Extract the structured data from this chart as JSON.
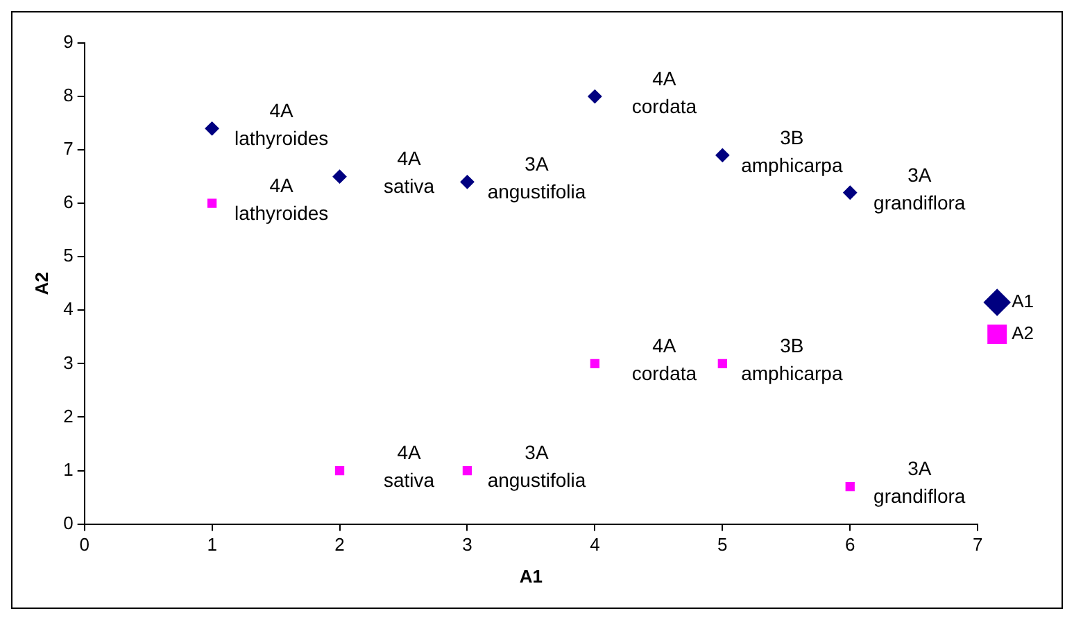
{
  "chart_data": {
    "type": "scatter",
    "xlabel": "A1",
    "ylabel": "A2",
    "xlim": [
      0,
      7
    ],
    "xticks": [
      0,
      1,
      2,
      3,
      4,
      5,
      6,
      7
    ],
    "ylim": [
      0,
      9
    ],
    "yticks": [
      0,
      1,
      2,
      3,
      4,
      5,
      6,
      7,
      8,
      9
    ],
    "grid": false,
    "legend": "right",
    "series": [
      {
        "name": "A1",
        "color": "#000080",
        "marker": "diamond",
        "x": [
          1,
          2,
          3,
          4,
          5,
          6
        ],
        "values": [
          7.4,
          6.5,
          6.4,
          8.0,
          6.9,
          6.2
        ]
      },
      {
        "name": "A2",
        "color": "#ff00ff",
        "marker": "square",
        "x": [
          1,
          2,
          3,
          4,
          5,
          6
        ],
        "values": [
          6.0,
          1.0,
          1.0,
          3.0,
          3.0,
          0.7
        ]
      }
    ],
    "annotations": [
      {
        "text": "4A\nlathyroides",
        "x": 1,
        "y": 7.4
      },
      {
        "text": "4A\nsativa",
        "x": 2,
        "y": 6.5
      },
      {
        "text": "3A\nangustifolia",
        "x": 3,
        "y": 6.4
      },
      {
        "text": "4A\ncordata",
        "x": 4,
        "y": 8.0
      },
      {
        "text": "3B\namphicarpa",
        "x": 5,
        "y": 6.9
      },
      {
        "text": "3A\ngrandiflora",
        "x": 6,
        "y": 6.2
      },
      {
        "text": "4A\nlathyroides",
        "x": 1,
        "y": 6.0
      },
      {
        "text": "4A\nsativa",
        "x": 2,
        "y": 1.0
      },
      {
        "text": "3A\nangustifolia",
        "x": 3,
        "y": 1.0
      },
      {
        "text": "4A\ncordata",
        "x": 4,
        "y": 3.0
      },
      {
        "text": "3B\namphicarpa",
        "x": 5,
        "y": 3.0
      },
      {
        "text": "3A\ngrandiflora",
        "x": 6,
        "y": 0.7
      }
    ]
  }
}
